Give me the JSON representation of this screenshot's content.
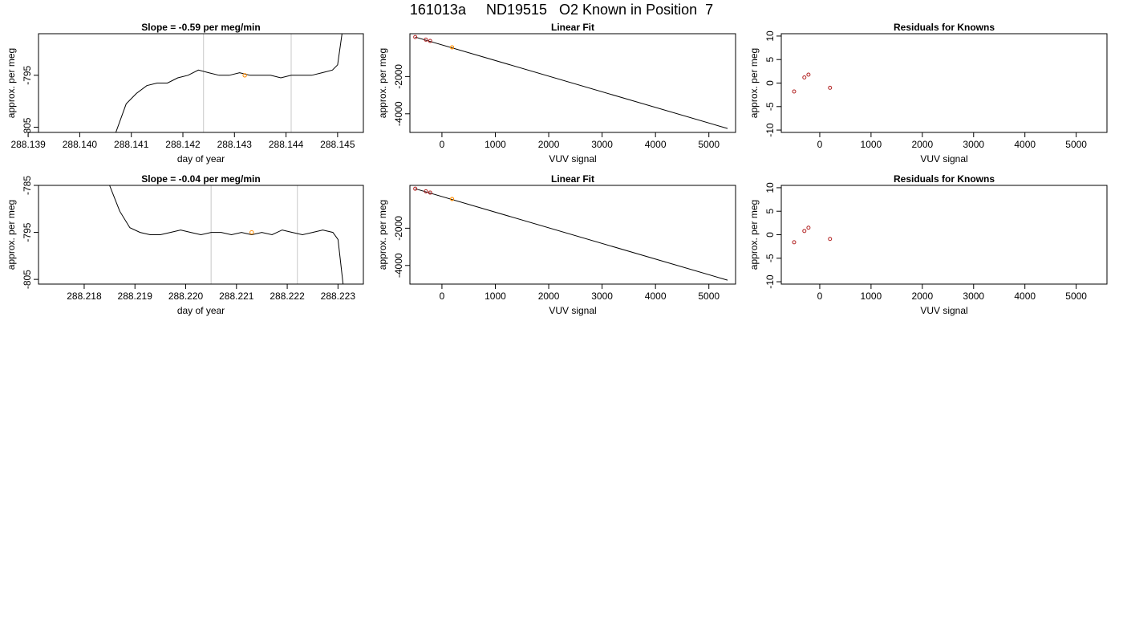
{
  "page_title": "161013a     ND19515   O2 Known in Position  7",
  "colors": {
    "trace": "#000000",
    "known_point": "#ff8c00",
    "residual_point": "#b22222",
    "grid_line": "#c8c8c8"
  },
  "chart_data": [
    {
      "type": "line",
      "title": "Slope =  -0.59  per meg/min",
      "xlabel": "day of year",
      "ylabel": "approx. per meg",
      "xlim": [
        288.1392,
        288.1455
      ],
      "ylim": [
        -806,
        -787
      ],
      "x_ticks": [
        "288.139",
        "288.140",
        "288.141",
        "288.142",
        "288.143",
        "288.144",
        "288.145"
      ],
      "y_ticks": [
        "-805",
        "-795"
      ],
      "vlines": [
        288.1424,
        288.1441
      ],
      "marker": {
        "x": 288.1432,
        "y": -795
      },
      "series": [
        {
          "x": [
            288.1407,
            288.1409,
            288.1411,
            288.1413,
            288.1415,
            288.1417,
            288.1419,
            288.1421,
            288.1423,
            288.1425,
            288.1427,
            288.1429,
            288.1431,
            288.1433,
            288.1435,
            288.1437,
            288.1439,
            288.1441,
            288.1443,
            288.1445,
            288.1447,
            288.1449,
            288.145,
            288.1451
          ],
          "y": [
            -806,
            -800.5,
            -798.5,
            -797,
            -796.5,
            -796.5,
            -795.5,
            -795,
            -794,
            -794.5,
            -795,
            -795,
            -794.5,
            -795,
            -795,
            -795,
            -795.5,
            -795,
            -795,
            -795,
            -794.5,
            -794,
            -793,
            -786
          ]
        }
      ]
    },
    {
      "type": "scatter",
      "title": "Linear Fit",
      "xlabel": "VUV signal",
      "ylabel": "approx. per meg",
      "xlim": [
        -600,
        5500
      ],
      "ylim": [
        -5000,
        300
      ],
      "x_ticks": [
        0,
        1000,
        2000,
        3000,
        4000,
        5000
      ],
      "y_ticks": [
        -4000,
        -2000
      ],
      "fit_line": {
        "x": [
          -500,
          5350
        ],
        "y": [
          120,
          -4790
        ]
      },
      "known_points": [
        {
          "x": -500,
          "y": 120
        },
        {
          "x": -300,
          "y": -20
        },
        {
          "x": -220,
          "y": -90
        }
      ],
      "unknown_points": [
        {
          "x": 190,
          "y": -430
        }
      ]
    },
    {
      "type": "scatter",
      "title": "Residuals for Knowns",
      "xlabel": "VUV signal",
      "ylabel": "approx. per meg",
      "xlim": [
        -750,
        5600
      ],
      "ylim": [
        -10.5,
        10.5
      ],
      "x_ticks": [
        0,
        1000,
        2000,
        3000,
        4000,
        5000
      ],
      "y_ticks": [
        -10,
        -5,
        0,
        5,
        10
      ],
      "points": [
        {
          "x": -500,
          "y": -1.8
        },
        {
          "x": -300,
          "y": 1.2
        },
        {
          "x": -220,
          "y": 1.8
        },
        {
          "x": 200,
          "y": -1.0
        }
      ]
    },
    {
      "type": "line",
      "title": "Slope =  -0.04  per meg/min",
      "xlabel": "day of year",
      "ylabel": "approx. per meg",
      "xlim": [
        288.2171,
        288.2235
      ],
      "ylim": [
        -806,
        -785
      ],
      "x_ticks": [
        "288.218",
        "288.219",
        "288.220",
        "288.221",
        "288.222",
        "288.223"
      ],
      "y_ticks": [
        "-805",
        "-795",
        "-785"
      ],
      "vlines": [
        288.2205,
        288.2222
      ],
      "marker": {
        "x": 288.2213,
        "y": -795
      },
      "series": [
        {
          "x": [
            288.2185,
            288.2187,
            288.2189,
            288.2191,
            288.2193,
            288.2195,
            288.2197,
            288.2199,
            288.2201,
            288.2203,
            288.2205,
            288.2207,
            288.2209,
            288.2211,
            288.2213,
            288.2215,
            288.2217,
            288.2219,
            288.2221,
            288.2223,
            288.2225,
            288.2227,
            288.2229,
            288.223,
            288.2231
          ],
          "y": [
            -785,
            -790.5,
            -794,
            -795,
            -795.5,
            -795.5,
            -795,
            -794.5,
            -795,
            -795.5,
            -795,
            -795,
            -795.5,
            -795,
            -795.5,
            -795,
            -795.5,
            -794.5,
            -795,
            -795.5,
            -795,
            -794.5,
            -795,
            -796.5,
            -806
          ]
        }
      ]
    },
    {
      "type": "scatter",
      "title": "Linear Fit",
      "xlabel": "VUV signal",
      "ylabel": "approx. per meg",
      "xlim": [
        -600,
        5500
      ],
      "ylim": [
        -5000,
        300
      ],
      "x_ticks": [
        0,
        1000,
        2000,
        3000,
        4000,
        5000
      ],
      "y_ticks": [
        -4000,
        -2000
      ],
      "fit_line": {
        "x": [
          -500,
          5350
        ],
        "y": [
          120,
          -4790
        ]
      },
      "known_points": [
        {
          "x": -500,
          "y": 120
        },
        {
          "x": -300,
          "y": -20
        },
        {
          "x": -220,
          "y": -90
        }
      ],
      "unknown_points": [
        {
          "x": 190,
          "y": -430
        }
      ]
    },
    {
      "type": "scatter",
      "title": "Residuals for Knowns",
      "xlabel": "VUV signal",
      "ylabel": "approx. per meg",
      "xlim": [
        -750,
        5600
      ],
      "ylim": [
        -10.5,
        10.5
      ],
      "x_ticks": [
        0,
        1000,
        2000,
        3000,
        4000,
        5000
      ],
      "y_ticks": [
        -10,
        -5,
        0,
        5,
        10
      ],
      "points": [
        {
          "x": -500,
          "y": -1.6
        },
        {
          "x": -300,
          "y": 0.8
        },
        {
          "x": -220,
          "y": 1.5
        },
        {
          "x": 200,
          "y": -0.9
        }
      ]
    }
  ]
}
